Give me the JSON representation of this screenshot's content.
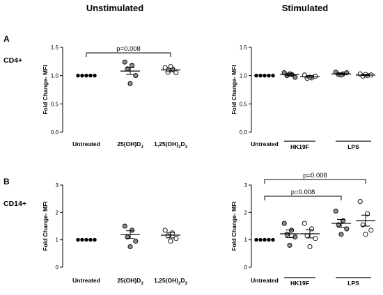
{
  "headers": {
    "left": "Unstimulated",
    "right": "Stimulated"
  },
  "panel_labels": {
    "top": "A",
    "bottom": "B"
  },
  "row_labels": {
    "top": "CD4+",
    "bottom": "CD14+"
  },
  "colors": {
    "gray_fill": "#8c8c8c",
    "black": "#000000",
    "white": "#ffffff"
  },
  "chart_data": [
    {
      "id": "cd4-unstim",
      "type": "scatter",
      "ylabel": "Fold Change- MFI",
      "ylim": [
        0,
        1.5
      ],
      "yticks": [
        "0.0",
        "0.5",
        "1.0",
        "1.5"
      ],
      "categories": [
        {
          "label": "Untreated",
          "fill": "black",
          "values": [
            1.0,
            1.0,
            1.0,
            1.0,
            1.0
          ],
          "mean": 1.0,
          "sem": 0
        },
        {
          "label": "25(OH)D",
          "sub": "3",
          "fill": "gray",
          "values": [
            1.24,
            1.18,
            1.12,
            1.0,
            0.86
          ],
          "mean": 1.08,
          "sem": 0.06
        },
        {
          "label": "1,25(OH)",
          "sub": "2",
          "label2": "D",
          "sub2": "3",
          "fill": "white",
          "values": [
            1.14,
            1.12,
            1.06,
            1.05,
            1.16
          ],
          "mean": 1.1,
          "sem": 0.03
        }
      ],
      "annotations": [
        {
          "text": "p=0.008",
          "from": 0,
          "to": 2,
          "level": 0
        }
      ],
      "groups": []
    },
    {
      "id": "cd4-stim",
      "type": "scatter",
      "ylabel": "Fold Change- MFI",
      "ylim": [
        0,
        1.5
      ],
      "yticks": [
        "0.0",
        "0.5",
        "1.0",
        "1.5"
      ],
      "categories": [
        {
          "label": "Untreated",
          "fill": "black",
          "values": [
            1.0,
            1.0,
            1.0,
            1.0,
            1.0
          ],
          "mean": 1.0,
          "sem": 0
        },
        {
          "label": "",
          "fill": "gray",
          "values": [
            1.05,
            1.02,
            1.0,
            0.97,
            1.03
          ],
          "mean": 1.02,
          "sem": 0.02
        },
        {
          "label": "",
          "fill": "white",
          "values": [
            1.01,
            0.96,
            0.95,
            0.99,
            0.97
          ],
          "mean": 0.98,
          "sem": 0.02
        },
        {
          "label": "",
          "fill": "gray",
          "values": [
            1.06,
            1.03,
            1.02,
            1.05,
            1.01
          ],
          "mean": 1.03,
          "sem": 0.01
        },
        {
          "label": "",
          "fill": "white",
          "values": [
            1.03,
            1.0,
            0.99,
            1.01,
            1.02
          ],
          "mean": 1.01,
          "sem": 0.01
        }
      ],
      "annotations": [],
      "groups": [
        {
          "label": "HK19F",
          "from": 1,
          "to": 2
        },
        {
          "label": "LPS",
          "from": 3,
          "to": 4
        }
      ]
    },
    {
      "id": "cd14-unstim",
      "type": "scatter",
      "ylabel": "Fold Change- MFI",
      "ylim": [
        0,
        3
      ],
      "yticks": [
        "0",
        "1",
        "2",
        "3"
      ],
      "categories": [
        {
          "label": "Untreated",
          "fill": "black",
          "values": [
            1.0,
            1.0,
            1.0,
            1.0,
            1.0
          ],
          "mean": 1.0,
          "sem": 0
        },
        {
          "label": "25(OH)D",
          "sub": "3",
          "fill": "gray",
          "values": [
            1.5,
            1.35,
            1.1,
            0.95,
            0.75
          ],
          "mean": 1.19,
          "sem": 0.14
        },
        {
          "label": "1,25(OH)",
          "sub": "2",
          "label2": "D",
          "sub2": "3",
          "fill": "white",
          "values": [
            1.35,
            1.25,
            1.15,
            1.05,
            0.95
          ],
          "mean": 1.17,
          "sem": 0.1
        }
      ],
      "annotations": [],
      "groups": []
    },
    {
      "id": "cd14-stim",
      "type": "scatter",
      "ylabel": "Fold Change- MFI",
      "ylim": [
        0,
        3
      ],
      "yticks": [
        "0",
        "1",
        "2",
        "3"
      ],
      "categories": [
        {
          "label": "Untreated",
          "fill": "black",
          "values": [
            1.0,
            1.0,
            1.0,
            1.0,
            1.0
          ],
          "mean": 1.0,
          "sem": 0
        },
        {
          "label": "",
          "fill": "gray",
          "values": [
            1.6,
            1.35,
            1.2,
            1.1,
            0.8
          ],
          "mean": 1.22,
          "sem": 0.14
        },
        {
          "label": "",
          "fill": "white",
          "values": [
            1.6,
            1.4,
            1.15,
            1.05,
            0.75
          ],
          "mean": 1.22,
          "sem": 0.15
        },
        {
          "label": "",
          "fill": "gray",
          "values": [
            2.05,
            1.7,
            1.55,
            1.4,
            1.2
          ],
          "mean": 1.6,
          "sem": 0.14
        },
        {
          "label": "",
          "fill": "white",
          "values": [
            2.4,
            1.95,
            1.55,
            1.35,
            1.2
          ],
          "mean": 1.7,
          "sem": 0.2
        }
      ],
      "annotations": [
        {
          "text": "p=0.008",
          "from": 0,
          "to": 3,
          "level": 0
        },
        {
          "text": "p=0.008",
          "from": 0,
          "to": 4,
          "level": 1
        }
      ],
      "groups": [
        {
          "label": "HK19F",
          "from": 1,
          "to": 2
        },
        {
          "label": "LPS",
          "from": 3,
          "to": 4
        }
      ]
    }
  ]
}
